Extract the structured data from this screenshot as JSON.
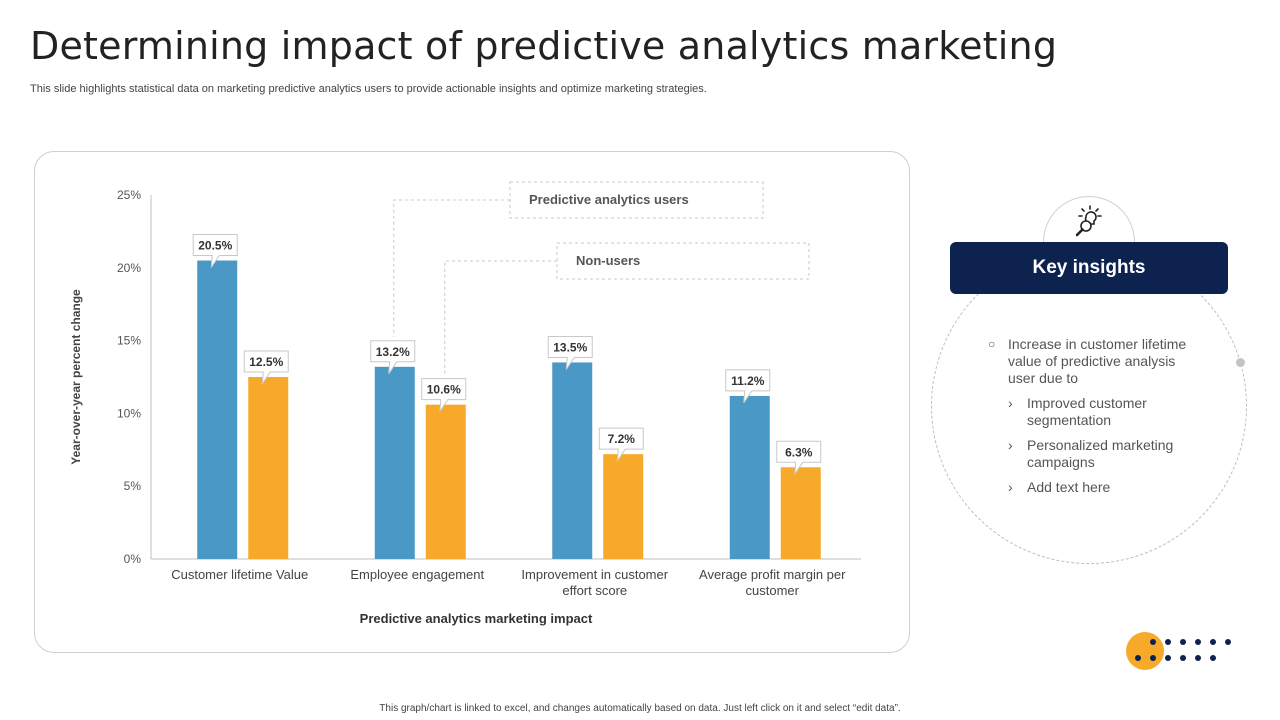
{
  "slide": {
    "title": "Determining impact of predictive analytics marketing",
    "subtitle": "This slide highlights statistical data on marketing predictive analytics users to provide actionable insights and optimize marketing strategies.",
    "footer_note": "This graph/chart is linked to excel, and changes automatically based on data. Just left click on it and select “edit data”."
  },
  "colors": {
    "users": "#4a98c6",
    "non_users": "#f7a929",
    "navy": "#0e2250"
  },
  "insights": {
    "icon": "lightbulb-magnifier-icon",
    "header": "Key insights",
    "main_point": "Increase in customer lifetime value of predictive analysis user due to",
    "sub_points": [
      "Improved customer segmentation",
      "Personalized marketing campaigns",
      "Add text here"
    ]
  },
  "chart_data": {
    "type": "bar",
    "xlabel": "Predictive analytics marketing impact",
    "ylabel": "Year-over-year percent change",
    "ylim": [
      0,
      25
    ],
    "yticks": [
      "0%",
      "5%",
      "10%",
      "15%",
      "20%",
      "25%"
    ],
    "categories": [
      [
        "Customer lifetime Value"
      ],
      [
        "Employee engagement"
      ],
      [
        "Improvement in customer",
        "effort score"
      ],
      [
        "Average profit margin per",
        "customer"
      ]
    ],
    "series": [
      {
        "name": "Predictive analytics users",
        "values": [
          20.5,
          13.2,
          13.5,
          11.2
        ],
        "labels": [
          "20.5%",
          "13.2%",
          "13.5%",
          "11.2%"
        ]
      },
      {
        "name": "Non-users",
        "values": [
          12.5,
          10.6,
          7.2,
          6.3
        ],
        "labels": [
          "12.5%",
          "10.6%",
          "7.2%",
          "6.3%"
        ]
      }
    ],
    "grid": false,
    "legend": "callouts top-center"
  }
}
